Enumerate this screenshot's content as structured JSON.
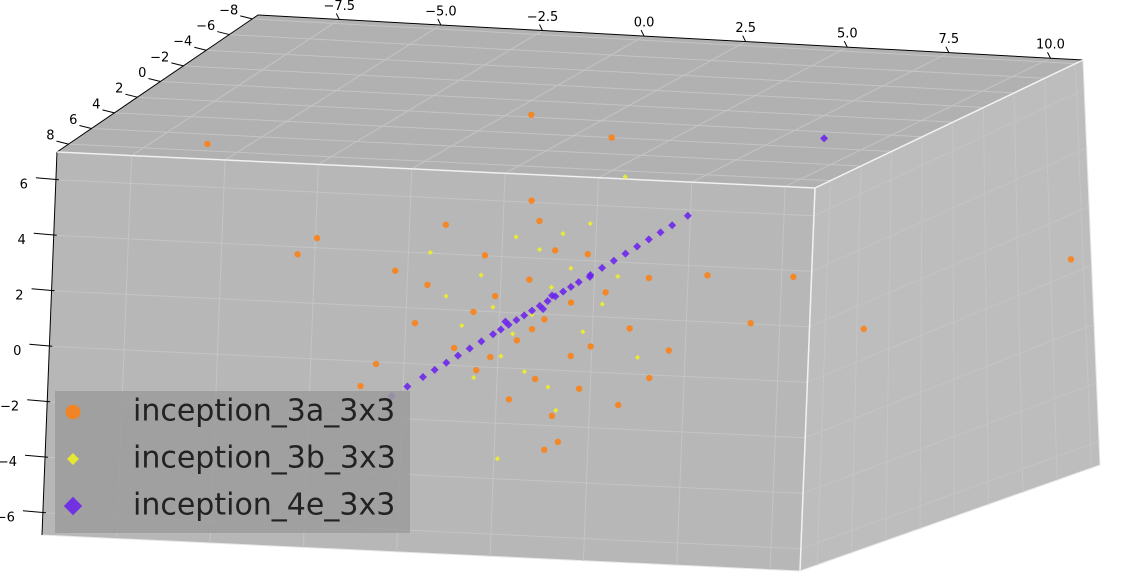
{
  "chart_data": {
    "type": "scatter3d",
    "xlim": [
      -9.5,
      10.8
    ],
    "ylim": [
      -8.5,
      9
    ],
    "zlim": [
      -6.8,
      7
    ],
    "xticks": [
      {
        "value": -7.5,
        "label": "−7.5"
      },
      {
        "value": -5,
        "label": "−5.0"
      },
      {
        "value": -2.5,
        "label": "−2.5"
      },
      {
        "value": 0,
        "label": "0.0"
      },
      2.5,
      {
        "value": 5,
        "label": "5.0"
      },
      7.5,
      {
        "value": 10,
        "label": "10.0"
      }
    ],
    "yticks": [
      {
        "value": -8,
        "label": "−8"
      },
      {
        "value": -6,
        "label": "−6"
      },
      {
        "value": -4,
        "label": "−4"
      },
      {
        "value": -2,
        "label": "−2"
      },
      0,
      2,
      4,
      6,
      8
    ],
    "zticks": [
      {
        "value": -6,
        "label": "−6"
      },
      {
        "value": -4,
        "label": "−4"
      },
      {
        "value": -2,
        "label": "−2"
      },
      0,
      2,
      4,
      6
    ],
    "grid": true,
    "legend": "lower left",
    "series": [
      {
        "name": "inception_3a_3x3",
        "color": "#ff7f0e",
        "marker": "circle",
        "x": [
          0,
          0.5,
          -0.5,
          1,
          -1,
          0.8,
          -0.8,
          1.5,
          -1.5,
          0.3,
          -0.3,
          2,
          -2,
          0.6,
          -0.6,
          2.5,
          -2.5,
          1.2,
          -1.2,
          0.2,
          0.5,
          3,
          -3,
          1.8,
          -1.8,
          3.5,
          -3.5,
          0,
          0.3,
          4.5,
          -4,
          2.2,
          -2.2,
          -8.3,
          10.5,
          8.5,
          5.6,
          6.7,
          -6,
          0,
          0.65,
          -4.4,
          3,
          -5.5,
          1
        ],
        "y": [
          0,
          0.5,
          -0.3,
          0,
          0.2,
          -0.5,
          0.4,
          0,
          0,
          1,
          -1,
          0.3,
          0,
          0,
          0,
          0,
          0.5,
          0,
          0,
          0,
          0,
          0,
          0,
          1,
          -1,
          0,
          0,
          0,
          0,
          0,
          0,
          0,
          0,
          0,
          -8,
          0,
          0,
          0,
          0,
          0,
          0,
          0,
          0,
          0,
          -3
        ],
        "z": [
          -1,
          -0.5,
          -1.5,
          0,
          -2,
          -2,
          0.2,
          -1.5,
          -0.5,
          1,
          -3,
          0.5,
          -1.8,
          1.8,
          -3.5,
          -0.8,
          0.5,
          -3,
          1.5,
          2.8,
          -4,
          1,
          -1,
          2,
          -2.8,
          -1.5,
          0.8,
          3.5,
          -5.2,
          1.2,
          -2.5,
          -3.5,
          2.5,
          4.9,
          0.3,
          -0.4,
          -0.4,
          1.3,
          1.2,
          6.5,
          -4.9,
          -3.3,
          -2.5,
          1.8,
          5
        ]
      },
      {
        "name": "inception_3b_3x3",
        "color": "#f2f222",
        "marker": "diamond-small",
        "x": [
          0,
          0.5,
          -0.5,
          1,
          -1,
          0.2,
          -0.2,
          1.3,
          -1.3,
          0.8,
          -0.8,
          1.8,
          -1.8,
          0.4,
          -0.4,
          2.2,
          -2.2,
          0.6,
          1.5,
          -1.5,
          2.7,
          -2.6,
          -0.9,
          2.4
        ],
        "y": [
          0,
          0,
          0,
          0,
          0,
          0,
          0,
          0,
          0,
          0,
          0,
          0,
          0,
          0,
          0,
          0,
          0,
          0,
          0,
          0,
          0,
          0,
          0,
          0
        ],
        "z": [
          -0.5,
          0.5,
          -1.2,
          1.2,
          -0.3,
          1.8,
          -2.5,
          -1,
          0.8,
          2.4,
          -2,
          0,
          -1,
          -3,
          2.2,
          1,
          0,
          -3.8,
          2.8,
          -2.8,
          -1.8,
          1.5,
          -5.6,
          4.5
        ]
      },
      {
        "name": "inception_4e_3x3",
        "color": "#6a1ef0",
        "marker": "diamond",
        "x": [
          -3.6,
          -3.2,
          -2.8,
          -2.5,
          -2.2,
          -1.9,
          -1.6,
          -1.3,
          -1,
          -0.8,
          -0.6,
          -0.4,
          -0.2,
          0,
          0.2,
          0.4,
          0.6,
          0.8,
          1,
          1.2,
          1.5,
          1.8,
          2.1,
          2.4,
          2.7,
          3,
          3.3,
          3.6,
          4,
          -0.5,
          0.1,
          0.7,
          1.3,
          7.5
        ],
        "y": [
          0,
          0,
          0,
          0,
          0,
          0,
          0,
          0,
          0,
          0,
          0,
          0,
          0,
          0,
          0,
          0,
          0,
          0,
          0,
          0,
          0,
          0,
          0,
          0,
          0,
          0,
          0,
          0,
          0,
          0.5,
          -0.5,
          0.5,
          -0.5,
          0
        ],
        "z": [
          -3.59,
          -3.23,
          -2.87,
          -2.6,
          -2.33,
          -2.06,
          -1.79,
          -1.52,
          -1.25,
          -1.07,
          -0.89,
          -0.71,
          -0.53,
          -0.35,
          -0.17,
          0.01,
          0.19,
          0.37,
          0.55,
          0.73,
          1,
          1.27,
          1.54,
          1.81,
          2.08,
          2.35,
          2.62,
          2.89,
          3.25,
          -0.65,
          -0.41,
          0.35,
          0.8,
          6.2
        ]
      }
    ]
  }
}
